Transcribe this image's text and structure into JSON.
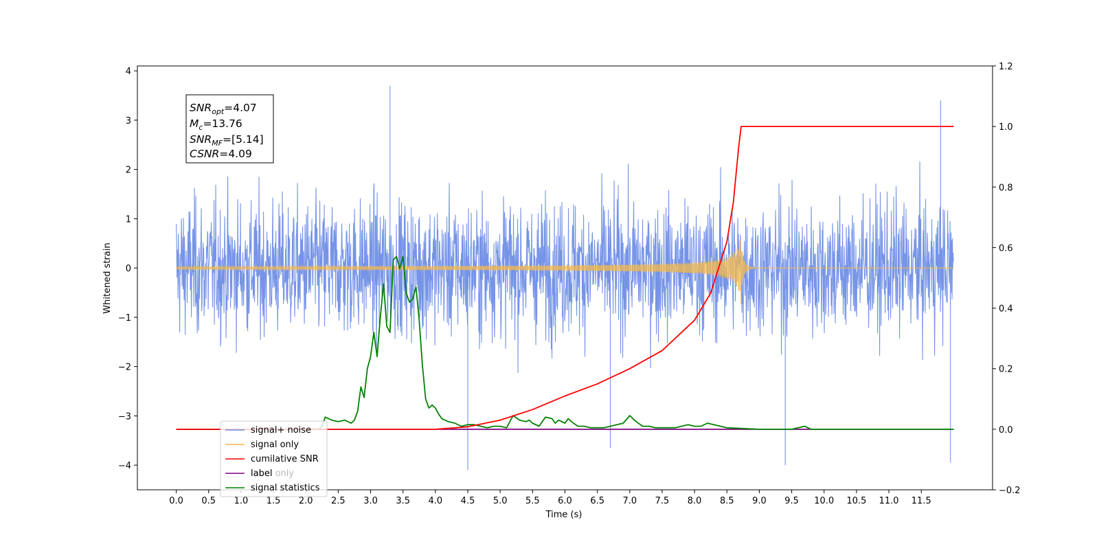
{
  "chart_data": {
    "type": "line",
    "xlabel": "Time (s)",
    "ylabel": "Whitened strain",
    "xlim": [
      -0.6,
      12.6
    ],
    "ylim": [
      -4.5,
      4.1
    ],
    "y2lim": [
      -0.2,
      1.2
    ],
    "grid": false,
    "x_ticks": [
      "0.0",
      "0.5",
      "1.0",
      "1.5",
      "2.0",
      "2.5",
      "3.0",
      "3.5",
      "4.0",
      "4.5",
      "5.0",
      "5.5",
      "6.0",
      "6.5",
      "7.0",
      "7.5",
      "8.0",
      "8.5",
      "9.0",
      "9.5",
      "10.0",
      "10.5",
      "11.0",
      "11.5"
    ],
    "y_ticks": [
      "4",
      "3",
      "2",
      "1",
      "0",
      "−1",
      "−2",
      "−3",
      "−4"
    ],
    "y2_ticks": [
      "1.2",
      "1.0",
      "0.8",
      "0.6",
      "0.4",
      "0.2",
      "0.0",
      "−0.2"
    ],
    "legend_position": "lower-left",
    "annotation": {
      "snr_opt": {
        "base": "SNR",
        "sub": "opt",
        "text": "=4.07"
      },
      "mc": {
        "base": "M",
        "sub": "c",
        "text": "=13.76"
      },
      "snr_mf": {
        "base": "SNR",
        "sub": "MF",
        "text": "=[5.14]"
      },
      "csnr": {
        "base": "CSNR",
        "sub": "",
        "text": "=4.09"
      }
    },
    "series": [
      {
        "name": "signal+ noise",
        "color": "#6f8ee6",
        "axis": "left",
        "description": "whitened noise plus signal, approx. zero-mean with peaks to about +3.7 and -4.1",
        "x_range": [
          0.0,
          12.0
        ],
        "spikes": [
          [
            3.3,
            3.7
          ],
          [
            4.5,
            -4.1
          ],
          [
            6.7,
            -3.65
          ],
          [
            9.4,
            -4.0
          ],
          [
            11.8,
            3.4
          ],
          [
            11.95,
            -3.95
          ]
        ]
      },
      {
        "name": "signal only",
        "color": "#f7b94a",
        "axis": "left",
        "description": "chirp amplitude growing toward merger near t=8.7 s (peak about 0.8)",
        "x_range": [
          0.0,
          12.0
        ],
        "merger_time": 8.72,
        "peak_amplitude": 0.8
      },
      {
        "name": "cumilative SNR",
        "color": "#ff0000",
        "axis": "right",
        "x": [
          0.0,
          4.0,
          4.5,
          5.0,
          5.5,
          6.0,
          6.5,
          7.0,
          7.5,
          8.0,
          8.25,
          8.5,
          8.6,
          8.68,
          8.72,
          12.0
        ],
        "y": [
          0.0,
          0.0,
          0.008,
          0.03,
          0.065,
          0.11,
          0.15,
          0.2,
          0.26,
          0.36,
          0.45,
          0.62,
          0.75,
          0.93,
          1.0,
          1.0
        ]
      },
      {
        "name": "label",
        "color": "#800080",
        "axis": "right",
        "x": [
          0.0,
          12.0
        ],
        "y": [
          0.0,
          0.0
        ]
      },
      {
        "name": "signal statistics",
        "color": "#008000",
        "axis": "right",
        "x": [
          0.0,
          2.2,
          2.25,
          2.3,
          2.4,
          2.5,
          2.6,
          2.7,
          2.75,
          2.8,
          2.85,
          2.9,
          2.95,
          3.0,
          3.05,
          3.1,
          3.15,
          3.2,
          3.25,
          3.3,
          3.35,
          3.4,
          3.45,
          3.5,
          3.55,
          3.6,
          3.65,
          3.7,
          3.75,
          3.8,
          3.85,
          3.9,
          3.95,
          4.0,
          4.05,
          4.1,
          4.2,
          4.3,
          4.4,
          4.5,
          4.6,
          4.7,
          4.8,
          4.9,
          5.0,
          5.1,
          5.2,
          5.3,
          5.4,
          5.45,
          5.5,
          5.6,
          5.7,
          5.8,
          5.85,
          5.9,
          6.0,
          6.05,
          6.1,
          6.2,
          6.3,
          6.4,
          6.5,
          6.6,
          6.7,
          6.8,
          6.9,
          7.0,
          7.1,
          7.2,
          7.3,
          7.4,
          7.5,
          7.6,
          7.7,
          7.8,
          7.9,
          8.0,
          8.1,
          8.2,
          8.3,
          8.4,
          8.5,
          9.0,
          9.5,
          9.7,
          9.8,
          10.0,
          10.5,
          11.0,
          11.5,
          12.0
        ],
        "y": [
          0.0,
          0.0,
          0.01,
          0.04,
          0.03,
          0.025,
          0.03,
          0.02,
          0.03,
          0.06,
          0.14,
          0.105,
          0.2,
          0.24,
          0.32,
          0.24,
          0.37,
          0.48,
          0.34,
          0.32,
          0.56,
          0.57,
          0.53,
          0.57,
          0.45,
          0.42,
          0.43,
          0.47,
          0.36,
          0.21,
          0.1,
          0.07,
          0.08,
          0.07,
          0.05,
          0.035,
          0.025,
          0.02,
          0.01,
          0.015,
          0.015,
          0.01,
          0.005,
          0.01,
          0.01,
          0.005,
          0.045,
          0.03,
          0.025,
          0.03,
          0.02,
          0.01,
          0.04,
          0.035,
          0.02,
          0.03,
          0.02,
          0.035,
          0.025,
          0.01,
          0.01,
          0.005,
          0.005,
          0.005,
          0.01,
          0.015,
          0.02,
          0.045,
          0.025,
          0.01,
          0.01,
          0.005,
          0.005,
          0.005,
          0.005,
          0.01,
          0.015,
          0.01,
          0.01,
          0.02,
          0.015,
          0.01,
          0.005,
          0.0,
          0.0,
          0.01,
          0.0,
          0.0,
          0.0,
          0.0,
          0.0,
          0.0
        ]
      }
    ]
  },
  "legend": [
    {
      "label": "signal+ noise",
      "color": "#6f8ee6"
    },
    {
      "label": "signal only",
      "color": "#f7b94a"
    },
    {
      "label": "cumilative SNR",
      "color": "#ff0000"
    },
    {
      "label": "label",
      "color": "#800080"
    },
    {
      "label": "label only",
      "color": "#c8c8c8"
    },
    {
      "label": "signal statistics",
      "color": "#008000"
    }
  ]
}
